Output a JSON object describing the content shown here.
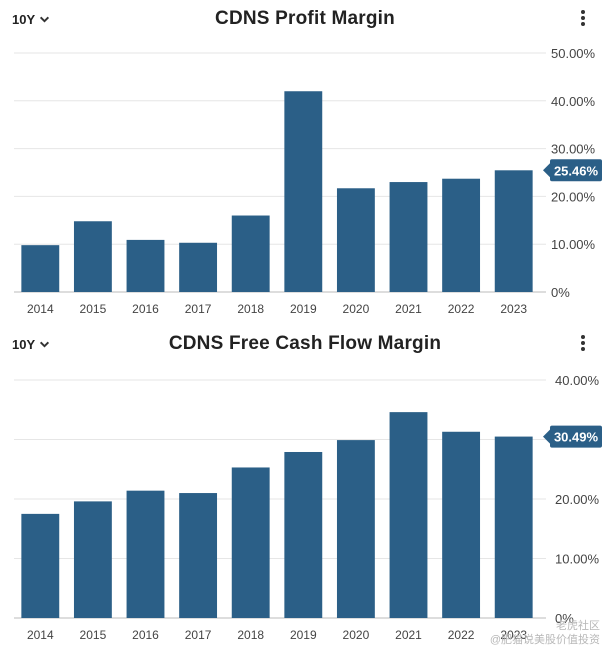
{
  "watermark": {
    "line1": "老虎社区",
    "line2": "@肥猫说美股价值投资"
  },
  "chart_data": [
    {
      "type": "bar",
      "title": "CDNS Profit Margin",
      "period_selector": "10Y",
      "categories": [
        "2014",
        "2015",
        "2016",
        "2017",
        "2018",
        "2019",
        "2020",
        "2021",
        "2022",
        "2023"
      ],
      "values": [
        9.8,
        14.8,
        10.9,
        10.3,
        16.0,
        42.0,
        21.7,
        23.0,
        23.7,
        25.46
      ],
      "ylim": [
        0,
        50
      ],
      "yticks": [
        "0%",
        "10.00%",
        "20.00%",
        "30.00%",
        "40.00%",
        "50.00%"
      ],
      "last_value_label": "25.46%",
      "bar_color": "#2b5f87",
      "grid": true,
      "y_axis_position": "right"
    },
    {
      "type": "bar",
      "title": "CDNS Free Cash Flow Margin",
      "period_selector": "10Y",
      "categories": [
        "2014",
        "2015",
        "2016",
        "2017",
        "2018",
        "2019",
        "2020",
        "2021",
        "2022",
        "2023"
      ],
      "values": [
        17.5,
        19.6,
        21.4,
        21.0,
        25.3,
        27.9,
        29.9,
        34.6,
        31.3,
        30.49
      ],
      "ylim": [
        0,
        40
      ],
      "yticks": [
        "0%",
        "10.00%",
        "20.00%",
        "30.00%",
        "40.00%"
      ],
      "last_value_label": "30.49%",
      "bar_color": "#2b5f87",
      "grid": true,
      "y_axis_position": "right"
    }
  ]
}
